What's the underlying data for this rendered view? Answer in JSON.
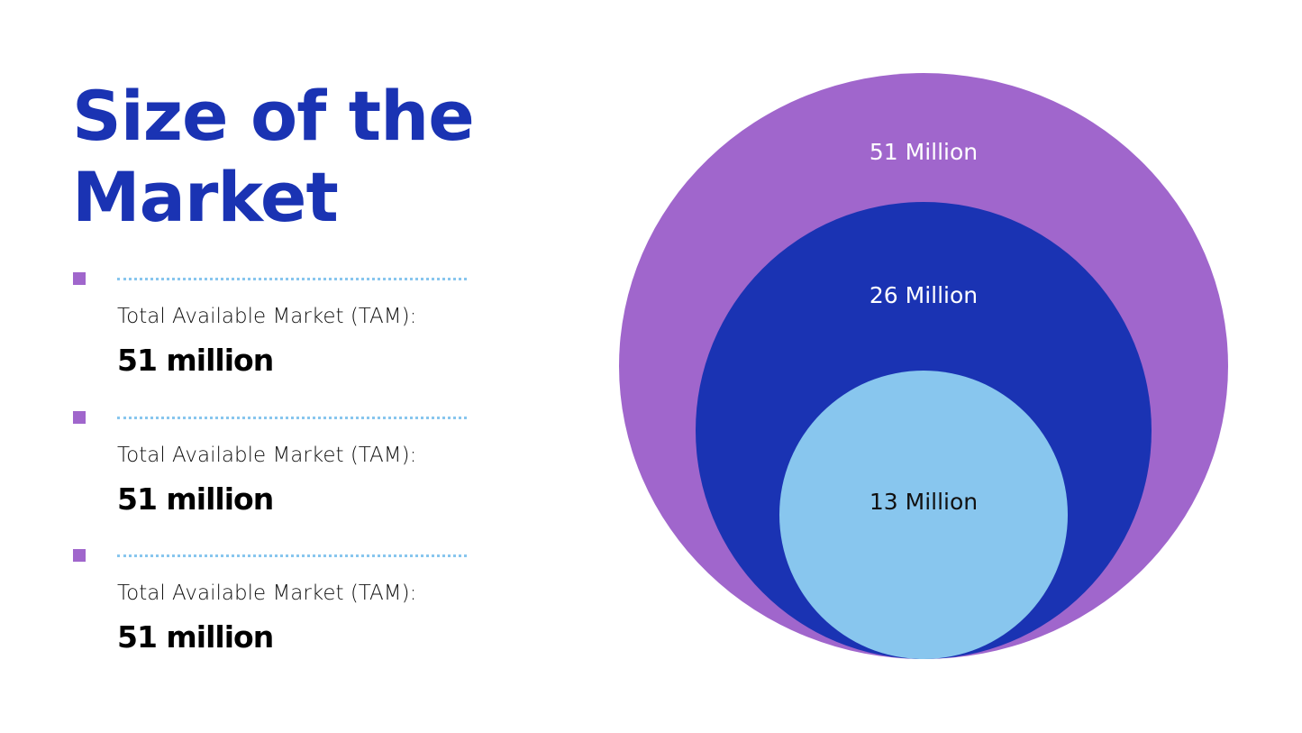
{
  "title": "Size of the Market",
  "items": [
    {
      "label": "Total Available Market (TAM):",
      "value": "51 million"
    },
    {
      "label": "Total Available Market (TAM):",
      "value": "51 million"
    },
    {
      "label": "Total Available Market (TAM):",
      "value": "51 million"
    }
  ],
  "circles": [
    {
      "label": "51 Million"
    },
    {
      "label": "26 Million"
    },
    {
      "label": "13 Million"
    }
  ]
}
